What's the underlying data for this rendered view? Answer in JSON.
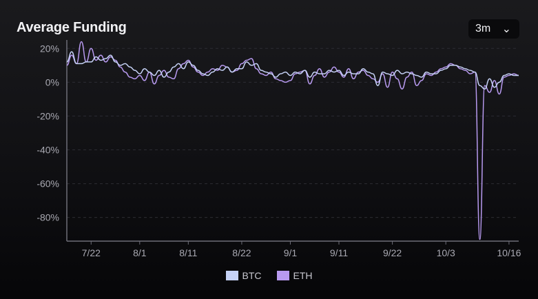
{
  "header": {
    "title": "Average Funding",
    "range_selector": {
      "selected": "3m",
      "icon": "chevron-down-icon"
    }
  },
  "chart_data": {
    "type": "line",
    "title": "Average Funding",
    "xlabel": "",
    "ylabel": "",
    "ylim": [
      -94,
      25
    ],
    "y_ticks": [
      20,
      0,
      -20,
      -40,
      -60,
      -80
    ],
    "y_tick_labels": [
      "20%",
      "0%",
      "-20%",
      "-40%",
      "-60%",
      "-80%"
    ],
    "x_tick_labels": [
      "7/22",
      "8/1",
      "8/11",
      "8/22",
      "9/1",
      "9/11",
      "9/22",
      "10/3",
      "10/16"
    ],
    "grid": true,
    "legend": "bottom-center",
    "x": [
      "7/17",
      "7/18",
      "7/19",
      "7/20",
      "7/21",
      "7/22",
      "7/23",
      "7/24",
      "7/25",
      "7/26",
      "7/27",
      "7/28",
      "7/29",
      "7/30",
      "7/31",
      "8/1",
      "8/2",
      "8/3",
      "8/4",
      "8/5",
      "8/6",
      "8/7",
      "8/8",
      "8/9",
      "8/10",
      "8/11",
      "8/12",
      "8/13",
      "8/14",
      "8/15",
      "8/16",
      "8/17",
      "8/18",
      "8/19",
      "8/20",
      "8/21",
      "8/22",
      "8/23",
      "8/24",
      "8/25",
      "8/26",
      "8/27",
      "8/28",
      "8/29",
      "8/30",
      "8/31",
      "9/1",
      "9/2",
      "9/3",
      "9/4",
      "9/5",
      "9/6",
      "9/7",
      "9/8",
      "9/9",
      "9/10",
      "9/11",
      "9/12",
      "9/13",
      "9/14",
      "9/15",
      "9/16",
      "9/17",
      "9/18",
      "9/19",
      "9/20",
      "9/21",
      "9/22",
      "9/23",
      "9/24",
      "9/25",
      "9/26",
      "9/27",
      "9/28",
      "9/29",
      "9/30",
      "10/1",
      "10/2",
      "10/3",
      "10/4",
      "10/5",
      "10/6",
      "10/7",
      "10/8",
      "10/9",
      "10/10",
      "10/11",
      "10/12",
      "10/13",
      "10/14",
      "10/15",
      "10/16",
      "10/17",
      "10/18"
    ],
    "series": [
      {
        "name": "BTC",
        "color": "#c6d2f6",
        "values": [
          12,
          18,
          11,
          11,
          12,
          12,
          15,
          13,
          14,
          16,
          12,
          10,
          11,
          9,
          7,
          5,
          8,
          6,
          4,
          7,
          3,
          6,
          9,
          11,
          8,
          12,
          10,
          7,
          5,
          4,
          6,
          8,
          7,
          9,
          6,
          8,
          8,
          12,
          10,
          11,
          7,
          6,
          5,
          3,
          5,
          6,
          4,
          6,
          5,
          7,
          3,
          6,
          5,
          5,
          7,
          6,
          7,
          4,
          6,
          5,
          5,
          8,
          6,
          5,
          -2,
          6,
          5,
          4,
          7,
          5,
          6,
          5,
          4,
          3,
          6,
          5,
          5,
          7,
          8,
          10,
          10,
          9,
          8,
          7,
          6,
          -2,
          -4,
          2,
          -3,
          0,
          4,
          5,
          4,
          4
        ]
      },
      {
        "name": "ETH",
        "color": "#b89af0",
        "values": [
          10,
          16,
          11,
          24,
          12,
          20,
          13,
          16,
          12,
          15,
          13,
          9,
          6,
          3,
          2,
          4,
          1,
          6,
          -1,
          4,
          7,
          3,
          2,
          8,
          11,
          13,
          9,
          6,
          4,
          6,
          8,
          7,
          10,
          9,
          6,
          7,
          11,
          13,
          14,
          8,
          5,
          4,
          6,
          2,
          1,
          0,
          1,
          5,
          6,
          7,
          -1,
          4,
          8,
          3,
          6,
          9,
          6,
          3,
          8,
          2,
          6,
          7,
          4,
          2,
          0,
          5,
          -3,
          6,
          2,
          -4,
          3,
          6,
          -2,
          1,
          5,
          4,
          6,
          8,
          9,
          11,
          10,
          8,
          7,
          5,
          6,
          -93,
          -2,
          -6,
          1,
          -7,
          3,
          4,
          5,
          4
        ]
      }
    ]
  },
  "legend": [
    {
      "label": "BTC",
      "color": "#c6d2f6"
    },
    {
      "label": "ETH",
      "color": "#b89af0"
    }
  ]
}
